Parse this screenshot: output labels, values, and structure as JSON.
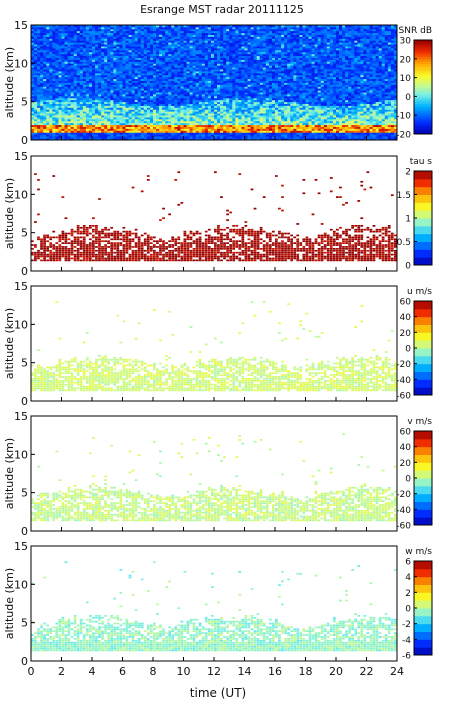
{
  "title": "Esrange MST radar 20111125",
  "xlabel": "time (UT)",
  "chart_data": [
    {
      "type": "heatmap",
      "ylabel": "altitude (km)",
      "colorbar_label": "SNR dB",
      "colorbar_ticks": [
        30,
        20,
        10,
        0,
        -10,
        -20
      ],
      "clim": [
        -20,
        30
      ],
      "xlim": [
        0,
        24
      ],
      "ylim": [
        0,
        15
      ],
      "xticks": [
        0,
        2,
        4,
        6,
        8,
        10,
        12,
        14,
        16,
        18,
        20,
        22,
        24
      ],
      "yticks": [
        0,
        5,
        10,
        15
      ],
      "description_rows": [
        {
          "altitude_range": [
            0,
            1
          ],
          "snr": -15
        },
        {
          "altitude_range": [
            1,
            2
          ],
          "snr": 20
        },
        {
          "altitude_range": [
            2,
            5
          ],
          "snr": 2
        },
        {
          "altitude_range": [
            5,
            15
          ],
          "snr": -12
        }
      ]
    },
    {
      "type": "heatmap",
      "ylabel": "altitude (km)",
      "colorbar_label": "tau s",
      "colorbar_ticks": [
        2,
        1.5,
        1,
        0.5,
        0
      ],
      "clim": [
        0,
        2
      ],
      "xlim": [
        0,
        24
      ],
      "ylim": [
        0,
        15
      ],
      "xticks": [
        0,
        2,
        4,
        6,
        8,
        10,
        12,
        14,
        16,
        18,
        20,
        22,
        24
      ],
      "yticks": [
        0,
        5,
        10,
        15
      ],
      "typical_value": 2
    },
    {
      "type": "heatmap",
      "ylabel": "altitude (km)",
      "colorbar_label": "u m/s",
      "colorbar_ticks": [
        60,
        40,
        20,
        0,
        -20,
        -40,
        -60
      ],
      "clim": [
        -60,
        60
      ],
      "xlim": [
        0,
        24
      ],
      "ylim": [
        0,
        15
      ],
      "xticks": [
        0,
        2,
        4,
        6,
        8,
        10,
        12,
        14,
        16,
        18,
        20,
        22,
        24
      ],
      "yticks": [
        0,
        5,
        10,
        15
      ],
      "typical_value": 5
    },
    {
      "type": "heatmap",
      "ylabel": "altitude (km)",
      "colorbar_label": "v m/s",
      "colorbar_ticks": [
        60,
        40,
        20,
        0,
        -20,
        -40,
        -60
      ],
      "clim": [
        -60,
        60
      ],
      "xlim": [
        0,
        24
      ],
      "ylim": [
        0,
        15
      ],
      "xticks": [
        0,
        2,
        4,
        6,
        8,
        10,
        12,
        14,
        16,
        18,
        20,
        22,
        24
      ],
      "yticks": [
        0,
        5,
        10,
        15
      ],
      "typical_value": 3
    },
    {
      "type": "heatmap",
      "ylabel": "altitude (km)",
      "colorbar_label": "w m/s",
      "colorbar_ticks": [
        6,
        4,
        2,
        0,
        -2,
        -4,
        -6
      ],
      "clim": [
        -6,
        6
      ],
      "xlim": [
        0,
        24
      ],
      "ylim": [
        0,
        15
      ],
      "xticks": [
        0,
        2,
        4,
        6,
        8,
        10,
        12,
        14,
        16,
        18,
        20,
        22,
        24
      ],
      "yticks": [
        0,
        5,
        10,
        15
      ],
      "typical_value": -0.5
    }
  ]
}
